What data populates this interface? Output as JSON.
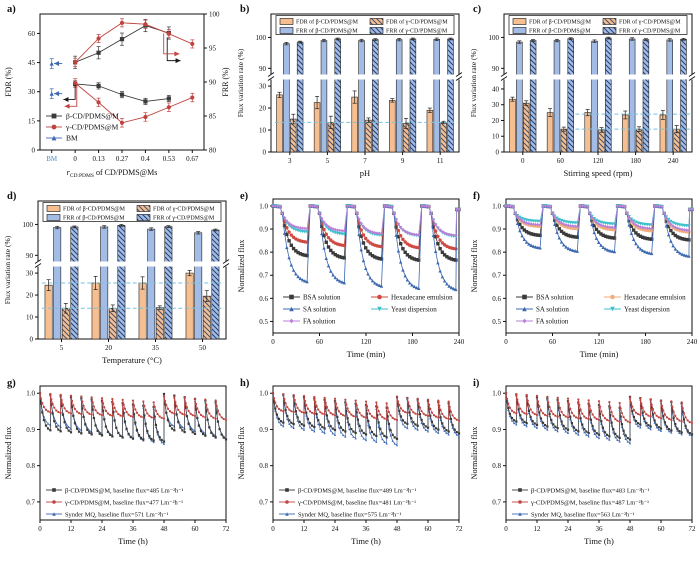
{
  "figure": {
    "background": "#ffffff"
  },
  "colors": {
    "orange": "#f6bf92",
    "blue": "#a3bce6",
    "bar_border": "#222222",
    "hatch_orange_line": "#44506e",
    "hatch_blue_line": "#27406e",
    "ref_dash": "#7bc0de",
    "axis": "#111111",
    "black_series": "#3a3a3a",
    "red_series": "#bf4440",
    "blue_series": "#3c68b0",
    "teal_series": "#3fc0cc",
    "purple_series": "#ba80d8",
    "orange_series": "#f0ae7c",
    "bm_blue": "#4f8fc4"
  },
  "chart_data": [
    {
      "id": "a",
      "tag": "a)",
      "type": "line_dual",
      "x": {
        "categories": [
          "BM",
          "0",
          "0.13",
          "0.27",
          "0.4",
          "0.53",
          "0.67"
        ],
        "label_pre": "r",
        "label_sub": "CD:PDMS",
        "label_post": " of CD/PDMS@Ms"
      },
      "y_left": {
        "label": "FDR (%)",
        "min": 0,
        "max": 70,
        "ticks": [
          0,
          15,
          30,
          45,
          60
        ]
      },
      "y_right": {
        "label": "FRR (%)",
        "min": 80,
        "max": 100,
        "ticks": [
          80,
          85,
          90,
          95,
          100
        ]
      },
      "series": [
        {
          "name": "FRR of β-CD/PDMS@M",
          "axis": "right",
          "color": "#3a3a3a",
          "marker": "square",
          "x": [
            1,
            2,
            3,
            4,
            5
          ],
          "y": [
            92.9,
            94.3,
            96.3,
            98.3,
            97.2
          ],
          "err": 0.9
        },
        {
          "name": "FRR of γ-CD/PDMS@M",
          "axis": "right",
          "color": "#bf4440",
          "marker": "circle",
          "x": [
            1,
            2,
            3,
            4,
            5,
            6
          ],
          "y": [
            92.9,
            96.4,
            98.7,
            98.5,
            97.1,
            95.6
          ],
          "err": 0.6
        },
        {
          "name": "FDR of β-CD/PDMS@M",
          "axis": "left",
          "color": "#3a3a3a",
          "marker": "square",
          "x": [
            1,
            2,
            3,
            4,
            5
          ],
          "y": [
            34,
            33,
            28.5,
            25,
            26.5
          ],
          "err": 1.6
        },
        {
          "name": "FDR of γ-CD/PDMS@M",
          "axis": "left",
          "color": "#bf4440",
          "marker": "circle",
          "x": [
            1,
            2,
            3,
            4,
            5,
            6
          ],
          "y": [
            34.5,
            24.5,
            14,
            17,
            22,
            27
          ],
          "err": 2.2
        },
        {
          "name": "BM",
          "axis": "left",
          "color": "#3c68b0",
          "marker": "triangle-up",
          "x": [
            0,
            0
          ],
          "y": [
            44.5,
            29
          ],
          "err": 2.5,
          "no_line": true
        }
      ],
      "legend": [
        {
          "label": "β-CD/PDMS@M",
          "color": "#3a3a3a",
          "marker": "square"
        },
        {
          "label": "γ-CD/PDMS@M",
          "color": "#bf4440",
          "marker": "circle"
        },
        {
          "label": "BM",
          "color": "#3c68b0",
          "marker": "triangle-up"
        }
      ],
      "arrows": [
        {
          "pts": [
            [
              1,
              33.5
            ],
            [
              1,
              26
            ],
            [
              0.5,
              26
            ]
          ],
          "color": "#1a1a1a",
          "head": "left"
        },
        {
          "pts": [
            [
              1.07,
              34.5
            ],
            [
              1.07,
              22.5
            ],
            [
              0.55,
              22.5
            ]
          ],
          "color": "#bf4440",
          "head": "left"
        },
        {
          "pts": [
            [
              4.93,
              58
            ],
            [
              4.93,
              46
            ],
            [
              5.5,
              46
            ]
          ],
          "color": "#1a1a1a",
          "head": "right"
        },
        {
          "pts": [
            [
              4.78,
              60
            ],
            [
              4.78,
              49.5
            ],
            [
              5.45,
              49.5
            ]
          ],
          "color": "#bf4440",
          "head": "right"
        },
        {
          "pts": [
            [
              0.45,
              44.5
            ],
            [
              0.1,
              44.5
            ]
          ],
          "color": "#3c68b0",
          "head": "left"
        },
        {
          "pts": [
            [
              0.45,
              29
            ],
            [
              0.1,
              29
            ]
          ],
          "color": "#3c68b0",
          "head": "left"
        }
      ]
    },
    {
      "id": "b",
      "tag": "b)",
      "type": "bar_broken",
      "x_label": "pH",
      "categories": [
        "3",
        "5",
        "7",
        "9",
        "11"
      ],
      "y_label": "Flux variation rate (%)",
      "lower": {
        "max": 33,
        "ticks": [
          0,
          10,
          20,
          30
        ]
      },
      "upper": {
        "min": 88,
        "max": 105,
        "ticks": [
          90,
          100
        ]
      },
      "series": [
        {
          "label": "FDR of β-CD/PDMS@M",
          "style": "orange",
          "values": [
            26,
            22.5,
            25,
            23.5,
            19
          ],
          "err": [
            1.2,
            2.8,
            2.8,
            0.8,
            1
          ]
        },
        {
          "label": "FRR of β-CD/PDMS@M",
          "style": "blue",
          "values": [
            98,
            99,
            99,
            99.3,
            99.4
          ],
          "err": 0.4
        },
        {
          "label": "FDR of γ-CD/PDMS@M",
          "style": "orange-hatch",
          "values": [
            15,
            13.5,
            14.5,
            13,
            13.5
          ],
          "err": [
            2.2,
            2.8,
            1,
            2.3,
            0.5
          ]
        },
        {
          "label": "FRR of γ-CD/PDMS@M",
          "style": "blue-hatch",
          "values": [
            98.5,
            99.5,
            99.3,
            99.5,
            99.5
          ],
          "err": 0.3
        }
      ],
      "ref_lines": [
        {
          "y": 13.5,
          "x0": 0.02,
          "x1": 0.99
        }
      ]
    },
    {
      "id": "c",
      "tag": "c)",
      "type": "bar_broken",
      "x_label": "Stirring speed (rpm)",
      "categories": [
        "0",
        "60",
        "120",
        "180",
        "240"
      ],
      "y_label": "Flux variation rate (%)",
      "lower": {
        "max": 46,
        "ticks": [
          0,
          10,
          20,
          30,
          40
        ]
      },
      "upper": {
        "min": 88,
        "max": 105,
        "ticks": [
          90,
          100
        ]
      },
      "series": [
        {
          "label": "FDR of β-CD/PDMS@M",
          "style": "orange",
          "values": [
            33.5,
            25,
            25,
            23.5,
            23.5
          ],
          "err": [
            1.3,
            2.5,
            2,
            2.5,
            2.8
          ]
        },
        {
          "label": "FRR of β-CD/PDMS@M",
          "style": "blue",
          "values": [
            98.5,
            99,
            98.8,
            99.5,
            99.2
          ],
          "err": 0.4
        },
        {
          "label": "FDR of γ-CD/PDMS@M",
          "style": "orange-hatch",
          "values": [
            31,
            14.5,
            14,
            14.5,
            14.5
          ],
          "err": [
            1.5,
            1.3,
            1.5,
            1.5,
            2.3
          ]
        },
        {
          "label": "FRR of γ-CD/PDMS@M",
          "style": "blue-hatch",
          "values": [
            99,
            99.6,
            99.8,
            99.3,
            99.4
          ],
          "err": 0.3
        }
      ],
      "ref_lines": [
        {
          "y": 24,
          "x0": 0.38,
          "x1": 0.99
        },
        {
          "y": 14.5,
          "x0": 0.38,
          "x1": 0.99
        }
      ]
    },
    {
      "id": "d",
      "tag": "d)",
      "type": "bar_broken",
      "x_label": "Temperature (°C)",
      "categories": [
        "5",
        "20",
        "35",
        "50"
      ],
      "y_label": "Flux variation rate (%)",
      "lower": {
        "max": 33,
        "ticks": [
          0,
          10,
          20,
          30
        ]
      },
      "upper": {
        "min": 88,
        "max": 105,
        "ticks": [
          90,
          100
        ]
      },
      "series": [
        {
          "label": "FDR of β-CD/PDMS@M",
          "style": "orange",
          "values": [
            24.5,
            25.5,
            25.5,
            30
          ],
          "err": [
            2.5,
            3,
            2.8,
            1.2
          ]
        },
        {
          "label": "FRR of β-CD/PDMS@M",
          "style": "blue",
          "values": [
            99,
            99.2,
            98.5,
            97.3
          ],
          "err": 0.4
        },
        {
          "label": "FDR of γ-CD/PDMS@M",
          "style": "orange-hatch",
          "values": [
            14,
            14,
            14.3,
            19.5
          ],
          "err": [
            2.2,
            1.5,
            0.8,
            2.5
          ]
        },
        {
          "label": "FRR of γ-CD/PDMS@M",
          "style": "blue-hatch",
          "values": [
            99.2,
            99.7,
            99.3,
            98.2
          ],
          "err": 0.3
        }
      ],
      "ref_lines": [
        {
          "y": 25.5,
          "x0": 0.02,
          "x1": 0.99
        },
        {
          "y": 14,
          "x0": 0.02,
          "x1": 0.99
        }
      ]
    },
    {
      "id": "e",
      "tag": "e)",
      "type": "cycles",
      "x_label": "Time (min)",
      "y_label": "Normalized flux",
      "xlim": [
        0,
        240
      ],
      "x_ticks": [
        0,
        60,
        120,
        180,
        240
      ],
      "ylim": [
        0.45,
        1.03
      ],
      "y_ticks": [
        0.5,
        0.6,
        0.7,
        0.8,
        0.9,
        1.0
      ],
      "cycle_min": 48,
      "n_cycles": 5,
      "series": [
        {
          "label": "BSA solution",
          "color": "#3a3a3a",
          "marker": "square",
          "floors": [
            0.78,
            0.77,
            0.765,
            0.76,
            0.76
          ]
        },
        {
          "label": "Hexadecane emulsion",
          "color": "#cf4a42",
          "marker": "circle",
          "floors": [
            0.84,
            0.825,
            0.82,
            0.815,
            0.81
          ]
        },
        {
          "label": "SA solution",
          "color": "#3c68b0",
          "marker": "triangle-up",
          "floors": [
            0.665,
            0.66,
            0.645,
            0.635,
            0.63
          ]
        },
        {
          "label": "Yeast dispersion",
          "color": "#3fc0cc",
          "marker": "triangle-down",
          "floors": [
            0.885,
            0.875,
            0.87,
            0.868,
            0.865
          ]
        },
        {
          "label": "FA solution",
          "color": "#ba80d8",
          "marker": "diamond",
          "floors": [
            0.9,
            0.89,
            0.878,
            0.872,
            0.87
          ]
        }
      ]
    },
    {
      "id": "f",
      "tag": "f)",
      "type": "cycles",
      "x_label": "Time (min)",
      "y_label": "Normalized flux",
      "xlim": [
        0,
        240
      ],
      "x_ticks": [
        0,
        60,
        120,
        180,
        240
      ],
      "ylim": [
        0.45,
        1.03
      ],
      "y_ticks": [
        0.5,
        0.6,
        0.7,
        0.8,
        0.9,
        1.0
      ],
      "cycle_min": 48,
      "n_cycles": 5,
      "series": [
        {
          "label": "BSA solution",
          "color": "#3a3a3a",
          "marker": "square",
          "floors": [
            0.87,
            0.862,
            0.858,
            0.853,
            0.85
          ]
        },
        {
          "label": "Hexadecane emulsion",
          "color": "#f0ae7c",
          "marker": "circle",
          "floors": [
            0.91,
            0.9,
            0.895,
            0.89,
            0.885
          ]
        },
        {
          "label": "SA solution",
          "color": "#3c68b0",
          "marker": "triangle-up",
          "floors": [
            0.815,
            0.8,
            0.798,
            0.79,
            0.778
          ]
        },
        {
          "label": "Yeast dispersion",
          "color": "#3fc0cc",
          "marker": "triangle-down",
          "floors": [
            0.932,
            0.925,
            0.92,
            0.916,
            0.912
          ]
        },
        {
          "label": "FA solution",
          "color": "#ba80d8",
          "marker": "diamond",
          "floors": [
            0.917,
            0.91,
            0.905,
            0.9,
            0.893
          ]
        }
      ]
    },
    {
      "id": "g",
      "tag": "g)",
      "type": "sawtooth",
      "x_label": "Time (h)",
      "y_label": "Normalized flux",
      "xlim": [
        0,
        72
      ],
      "x_ticks": [
        0,
        12,
        24,
        36,
        48,
        60,
        72
      ],
      "ylim": [
        0.65,
        1.02
      ],
      "y_ticks": [
        0.7,
        0.8,
        0.9,
        1.0
      ],
      "n_cycles": 18,
      "cycle_h": 4,
      "reset_cycle": 12,
      "series": [
        {
          "label": "β-CD/PDMS@M, baseline flux=485 Lm⁻²h⁻¹",
          "color": "#3a3a3a",
          "marker": "square",
          "z": 1,
          "peaks1": [
            1.0,
            0.962
          ],
          "floors1": [
            0.893,
            0.862
          ],
          "peaks2": [
            0.998,
            0.975
          ],
          "floors2": [
            0.893,
            0.868
          ]
        },
        {
          "label": "γ-CD/PDMS@M, baseline flux=477 Lm⁻²h⁻¹",
          "color": "#bf4440",
          "marker": "circle",
          "z": 2,
          "peaks1": [
            1.0,
            0.975
          ],
          "floors1": [
            0.945,
            0.928
          ],
          "peaks2": [
            0.992,
            0.98
          ],
          "floors2": [
            0.942,
            0.924
          ]
        },
        {
          "label": "Synder MQ, baseline flux=571 Lm⁻²h⁻¹",
          "color": "#3c68b0",
          "marker": "triangle-up",
          "z": 0,
          "peaks1": [
            0.998,
            0.957
          ],
          "floors1": [
            0.908,
            0.856
          ],
          "peaks2": [
            0.992,
            0.97
          ],
          "floors2": [
            0.905,
            0.872
          ]
        }
      ]
    },
    {
      "id": "h",
      "tag": "h)",
      "type": "sawtooth",
      "x_label": "Time (h)",
      "y_label": "Normalized flux",
      "xlim": [
        0,
        72
      ],
      "x_ticks": [
        0,
        12,
        24,
        36,
        48,
        60,
        72
      ],
      "ylim": [
        0.65,
        1.02
      ],
      "y_ticks": [
        0.7,
        0.8,
        0.9,
        1.0
      ],
      "n_cycles": 18,
      "cycle_h": 4,
      "reset_cycle": 12,
      "series": [
        {
          "label": "β-CD/PDMS@M, baseline flux=489 Lm⁻²h⁻¹",
          "color": "#3a3a3a",
          "marker": "square",
          "z": 1,
          "peaks1": [
            1.0,
            0.96
          ],
          "floors1": [
            0.915,
            0.87
          ],
          "peaks2": [
            0.99,
            0.972
          ],
          "floors2": [
            0.912,
            0.885
          ]
        },
        {
          "label": "γ-CD/PDMS@M, baseline flux=481 Lm⁻²h⁻¹",
          "color": "#bf4440",
          "marker": "circle",
          "z": 2,
          "peaks1": [
            1.0,
            0.972
          ],
          "floors1": [
            0.948,
            0.924
          ],
          "peaks2": [
            0.99,
            0.977
          ],
          "floors2": [
            0.944,
            0.922
          ]
        },
        {
          "label": "Synder MQ, baseline flux=575 Lm⁻²h⁻¹",
          "color": "#3c68b0",
          "marker": "triangle-up",
          "z": 0,
          "peaks1": [
            0.998,
            0.953
          ],
          "floors1": [
            0.905,
            0.852
          ],
          "peaks2": [
            0.988,
            0.965
          ],
          "floors2": [
            0.9,
            0.878
          ]
        }
      ]
    },
    {
      "id": "i",
      "tag": "i)",
      "type": "sawtooth",
      "x_label": "Time (h)",
      "y_label": "Normalized flux",
      "xlim": [
        0,
        72
      ],
      "x_ticks": [
        0,
        12,
        24,
        36,
        48,
        60,
        72
      ],
      "ylim": [
        0.65,
        1.02
      ],
      "y_ticks": [
        0.7,
        0.8,
        0.9,
        1.0
      ],
      "n_cycles": 18,
      "cycle_h": 4,
      "reset_cycle": 12,
      "series": [
        {
          "label": "β-CD/PDMS@M, baseline flux=483 Lm⁻²h⁻¹",
          "color": "#3a3a3a",
          "marker": "square",
          "z": 1,
          "peaks1": [
            1.0,
            0.96
          ],
          "floors1": [
            0.918,
            0.868
          ],
          "peaks2": [
            0.99,
            0.972
          ],
          "floors2": [
            0.91,
            0.882
          ]
        },
        {
          "label": "γ-CD/PDMS@M, baseline flux=487 Lm⁻²h⁻¹",
          "color": "#bf4440",
          "marker": "circle",
          "z": 2,
          "peaks1": [
            1.0,
            0.973
          ],
          "floors1": [
            0.942,
            0.917
          ],
          "peaks2": [
            0.988,
            0.975
          ],
          "floors2": [
            0.938,
            0.915
          ]
        },
        {
          "label": "Synder MQ, baseline flux=563 Lm⁻²h⁻¹",
          "color": "#3c68b0",
          "marker": "triangle-up",
          "z": 0,
          "peaks1": [
            0.998,
            0.955
          ],
          "floors1": [
            0.91,
            0.858
          ],
          "peaks2": [
            0.986,
            0.965
          ],
          "floors2": [
            0.902,
            0.878
          ]
        }
      ]
    }
  ]
}
